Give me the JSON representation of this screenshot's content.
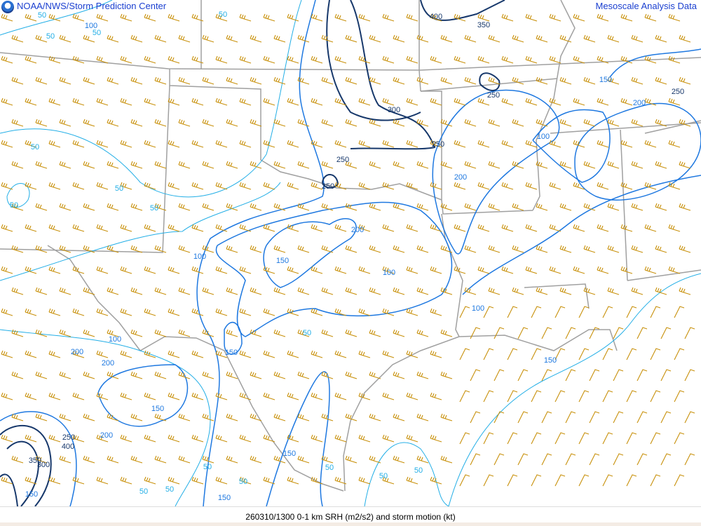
{
  "header": {
    "left_title": "NOAA/NWS/Storm Prediction Center",
    "right_title": "Mesoscale Analysis Data",
    "logo_icon": "noaa-logo-icon"
  },
  "caption": "260310/1300 0-1 km SRH (m2/s2) and storm motion (kt)",
  "colors": {
    "contour_50": "#22aee6",
    "contour_100_200": "#1e78e0",
    "contour_250_plus": "#17386b",
    "wind_barb": "#c8900a",
    "borders": "#a0a0a0"
  },
  "contour_labels": [
    "50",
    "50",
    "100",
    "50",
    "50",
    "50",
    "50",
    "50",
    "50",
    "400",
    "350",
    "300",
    "250",
    "250",
    "250",
    "250",
    "250",
    "200",
    "100",
    "150",
    "200",
    "200",
    "150",
    "100",
    "100",
    "100",
    "50",
    "150",
    "100",
    "200",
    "200",
    "150",
    "150",
    "200",
    "250",
    "400",
    "350",
    "300",
    "150",
    "150",
    "50",
    "50",
    "50",
    "50",
    "50",
    "50",
    "50",
    "150"
  ]
}
